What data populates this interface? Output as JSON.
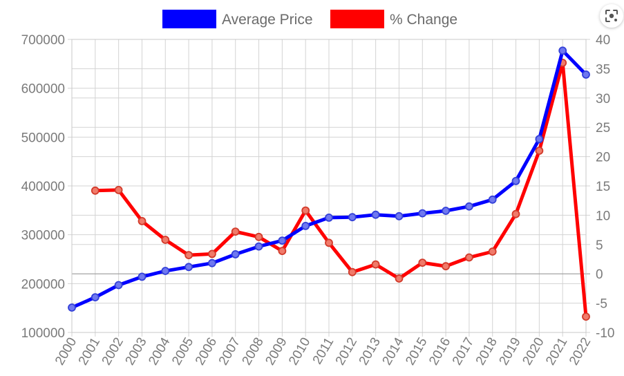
{
  "chart_data": {
    "type": "line",
    "title": "",
    "xlabel": "",
    "ylabel": "",
    "legend_position": "top-center",
    "grid": true,
    "categories": [
      "2000",
      "2001",
      "2002",
      "2003",
      "2004",
      "2005",
      "2006",
      "2007",
      "2008",
      "2009",
      "2010",
      "2011",
      "2012",
      "2013",
      "2014",
      "2015",
      "2016",
      "2017",
      "2018",
      "2019",
      "2020",
      "2021",
      "2022"
    ],
    "series": [
      {
        "name": "Average Price",
        "axis": "left",
        "color": "#0000ff",
        "values": [
          151000,
          172000,
          197000,
          214000,
          226000,
          234000,
          242000,
          260000,
          276000,
          288000,
          318000,
          335000,
          336000,
          341000,
          338000,
          344000,
          349000,
          358000,
          372000,
          410000,
          496000,
          677000,
          628000
        ]
      },
      {
        "name": "% Change",
        "axis": "right",
        "color": "#ff0000",
        "values": [
          null,
          14.2,
          14.3,
          9.0,
          5.8,
          3.2,
          3.4,
          7.2,
          6.3,
          3.9,
          10.8,
          5.3,
          0.3,
          1.6,
          -0.8,
          1.9,
          1.3,
          2.8,
          3.8,
          10.2,
          21.0,
          36.0,
          -7.3
        ]
      }
    ],
    "y_left": {
      "ylim": [
        100000,
        700000
      ],
      "ticks": [
        "100000",
        "200000",
        "300000",
        "400000",
        "500000",
        "600000",
        "700000"
      ]
    },
    "y_right": {
      "ylim": [
        -10,
        40
      ],
      "ticks": [
        "-10",
        "-5",
        "0",
        "5",
        "10",
        "15",
        "20",
        "25",
        "30",
        "35",
        "40"
      ]
    }
  },
  "ui": {
    "lens_icon": "lens-icon"
  }
}
